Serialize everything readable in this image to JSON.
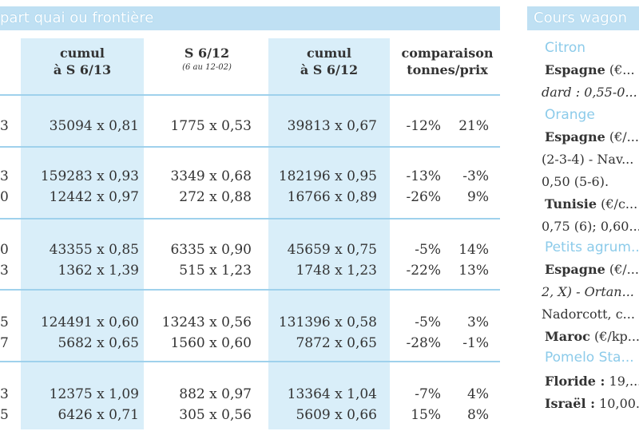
{
  "left_title": "part quai ou frontière",
  "columns": {
    "c1": "cumul",
    "c1b": "à S 6/13",
    "c2": "S 6/12",
    "c2sub": "(6 au 12-02)",
    "c3": "cumul",
    "c3b": "à S 6/12",
    "c4": "comparaison",
    "c4b": "tonnes/prix"
  },
  "rows": [
    {
      "edge": "3",
      "c1": "35094 x 0,81",
      "c2": "1775 x 0,53",
      "c3": "39813 x 0,67",
      "p1": "-12%",
      "p2": "21%"
    },
    {
      "edge": "3",
      "c1": "159283 x 0,93",
      "c2": "3349 x 0,68",
      "c3": "182196 x 0,95",
      "p1": "-13%",
      "p2": "-3%"
    },
    {
      "edge": "0",
      "c1": "12442 x 0,97",
      "c2": "272 x 0,88",
      "c3": "16766 x 0,89",
      "p1": "-26%",
      "p2": "9%"
    },
    {
      "edge": "0",
      "c1": "43355 x 0,85",
      "c2": "6335 x 0,90",
      "c3": "45659 x 0,75",
      "p1": "-5%",
      "p2": "14%"
    },
    {
      "edge": "3",
      "c1": "1362 x 1,39",
      "c2": "515 x 1,23",
      "c3": "1748 x 1,23",
      "p1": "-22%",
      "p2": "13%"
    },
    {
      "edge": "5",
      "c1": "124491 x 0,60",
      "c2": "13243 x 0,56",
      "c3": "131396 x 0,58",
      "p1": "-5%",
      "p2": "3%"
    },
    {
      "edge": "7",
      "c1": "5682 x 0,65",
      "c2": "1560 x 0,60",
      "c3": "7872 x 0,65",
      "p1": "-28%",
      "p2": "-1%"
    },
    {
      "edge": "3",
      "c1": "12375 x 1,09",
      "c2": "882 x 0,97",
      "c3": "13364 x 1,04",
      "p1": "-7%",
      "p2": "4%"
    },
    {
      "edge": "5",
      "c1": "6426 x 0,71",
      "c2": "305 x 0,56",
      "c3": "5609 x 0,66",
      "p1": "15%",
      "p2": "8%"
    }
  ],
  "right_title": "Cours wagon",
  "right_lines": [
    {
      "cls": "prod",
      "text": "Citron"
    },
    {
      "cls": "country",
      "text": "Espagne",
      "rest": " (€..."
    },
    {
      "cls": "ital",
      "text": "dard : 0,55-0..."
    },
    {
      "cls": "prod",
      "text": "Orange"
    },
    {
      "cls": "country",
      "text": "Espagne",
      "rest": " (€/..."
    },
    {
      "cls": "",
      "text": "(2-3-4) - Nav..."
    },
    {
      "cls": "",
      "text": "0,50 (5-6)."
    },
    {
      "cls": "country",
      "text": "Tunisie",
      "rest": " (€/c..."
    },
    {
      "cls": "",
      "text": "0,75 (6); 0,60..."
    },
    {
      "cls": "prod",
      "text": "Petits agrum..."
    },
    {
      "cls": "country",
      "text": "Espagne",
      "rest": " (€/..."
    },
    {
      "cls": "",
      "text": "2, X) - Ortan..."
    },
    {
      "cls": "",
      "text": "Nadorcott, c..."
    },
    {
      "cls": "country",
      "text": "Maroc",
      "rest": " (€/kp..."
    },
    {
      "cls": "prod",
      "text": "Pomelo Sta..."
    },
    {
      "cls": "country",
      "text": "Floride :",
      "rest": " 19,..."
    },
    {
      "cls": "country",
      "text": "Israël :",
      "rest": " 10,00..."
    }
  ]
}
